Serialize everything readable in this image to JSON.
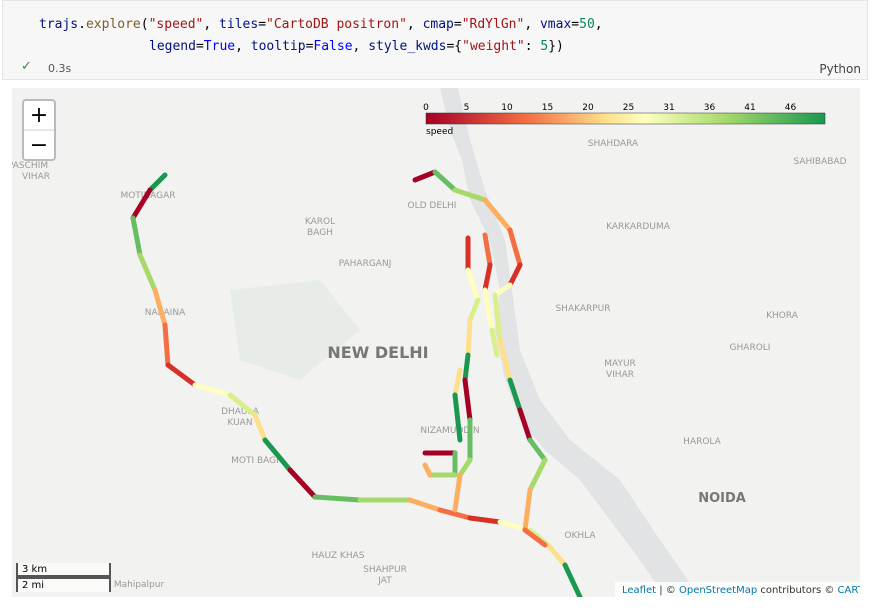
{
  "code_cell": {
    "lines": [
      [
        "trajs",
        ".",
        "explore",
        "(",
        "\"speed\"",
        ", ",
        "tiles",
        "=",
        "\"CartoDB positron\"",
        ", ",
        "cmap",
        "=",
        "\"RdYlGn\"",
        ", ",
        "vmax",
        "=",
        "50",
        ","
      ],
      [
        "legend",
        "=",
        "True",
        ", ",
        "tooltip",
        "=",
        "False",
        ", ",
        "style_kwds",
        "={",
        "\"weight\"",
        ": ",
        "5",
        "})"
      ]
    ],
    "status": "0.3s",
    "language": "Python"
  },
  "map": {
    "zoom_in": "+",
    "zoom_out": "−",
    "legend": {
      "ticks": [
        0,
        5,
        10,
        15,
        20,
        25,
        31,
        36,
        41,
        46
      ],
      "caption": "speed"
    },
    "labels": [
      "PASCHIM",
      "VIHAR",
      "MOTINAGAR",
      "KAROL",
      "BAGH",
      "PAHARGANJ",
      "OLD DELHI",
      "SHAHDARA",
      "SAHIBABAD",
      "KARKARDUMA",
      "SHAKARPUR",
      "KHORA",
      "GHAROLI",
      "MAYUR",
      "VIHAR",
      "NEW DELHI",
      "NARAINA",
      "DHAULA",
      "KUAN",
      "MOTI BAGH",
      "NIZAMUDDIN",
      "HAROLA",
      "NOIDA",
      "HAUZ KHAS",
      "SHAHPUR",
      "JAT",
      "OKHLA",
      "Mahipalpur"
    ],
    "scale": {
      "metric": "3 km",
      "imperial": "2 mi"
    },
    "attribution": [
      "Leaflet",
      " | © ",
      "OpenStreetMap",
      " contributors © ",
      "CARTO"
    ]
  }
}
